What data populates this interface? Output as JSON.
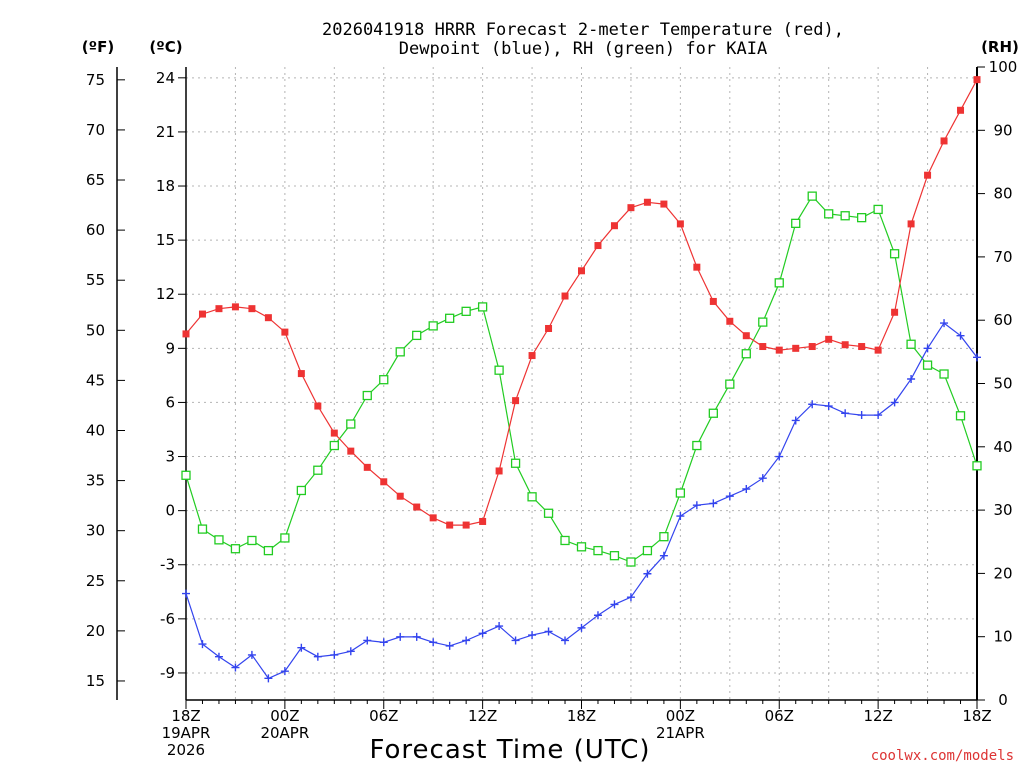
{
  "chart_data": {
    "type": "line",
    "title_line1": "2026041918 HRRR Forecast 2-meter Temperature (red),",
    "title_line2": "Dewpoint (blue), RH (green) for KAIA",
    "xlabel": "Forecast Time (UTC)",
    "credit": "coolwx.com/models",
    "unit_labels": {
      "fahrenheit": "(ºF)",
      "celsius": "(ºC)",
      "rh": "(RH)"
    },
    "x_ticks": [
      {
        "hour": 0,
        "lines": [
          "18Z",
          "19APR",
          "2026"
        ]
      },
      {
        "hour": 6,
        "lines": [
          "00Z",
          "20APR"
        ]
      },
      {
        "hour": 12,
        "lines": [
          "06Z"
        ]
      },
      {
        "hour": 18,
        "lines": [
          "12Z"
        ]
      },
      {
        "hour": 24,
        "lines": [
          "18Z"
        ]
      },
      {
        "hour": 30,
        "lines": [
          "00Z",
          "21APR"
        ]
      },
      {
        "hour": 36,
        "lines": [
          "06Z"
        ]
      },
      {
        "hour": 42,
        "lines": [
          "12Z"
        ]
      },
      {
        "hour": 48,
        "lines": [
          "18Z"
        ]
      }
    ],
    "xlim": [
      0,
      48
    ],
    "ylim_c": [
      -10.5,
      24.6
    ],
    "ylim_rh": [
      0,
      100
    ],
    "celsius_ticks": [
      "-9",
      "-6",
      "-3",
      "0",
      "3",
      "6",
      "9",
      "12",
      "15",
      "18",
      "21",
      "24"
    ],
    "fahrenheit_ticks": [
      "15",
      "20",
      "25",
      "30",
      "35",
      "40",
      "45",
      "50",
      "55",
      "60",
      "65",
      "70",
      "75"
    ],
    "rh_ticks": [
      "0",
      "10",
      "20",
      "30",
      "40",
      "50",
      "60",
      "70",
      "80",
      "90",
      "100"
    ],
    "series": [
      {
        "name": "Temperature",
        "color": "#ee3333",
        "unit": "C",
        "marker": "filled-square",
        "values": [
          9.8,
          10.9,
          11.2,
          11.3,
          11.2,
          10.7,
          9.9,
          7.6,
          5.8,
          4.3,
          3.3,
          2.4,
          1.6,
          0.8,
          0.2,
          -0.4,
          -0.8,
          -0.8,
          -0.6,
          2.2,
          6.1,
          8.6,
          10.1,
          11.9,
          13.3,
          14.7,
          15.8,
          16.8,
          17.1,
          17.0,
          15.9,
          13.5,
          11.6,
          10.5,
          9.7,
          9.1,
          8.9,
          9.0,
          9.1,
          9.5,
          9.2,
          9.1,
          8.9,
          11.0,
          15.9,
          18.6,
          20.5,
          22.2,
          23.9
        ]
      },
      {
        "name": "Dewpoint",
        "color": "#3344ee",
        "unit": "C",
        "marker": "plus",
        "values": [
          -4.6,
          -7.4,
          -8.1,
          -8.7,
          -8.0,
          -9.3,
          -8.9,
          -7.6,
          -8.1,
          -8.0,
          -7.8,
          -7.2,
          -7.3,
          -7.0,
          -7.0,
          -7.3,
          -7.5,
          -7.2,
          -6.8,
          -6.4,
          -7.2,
          -6.9,
          -6.7,
          -7.2,
          -6.5,
          -5.8,
          -5.2,
          -4.8,
          -3.5,
          -2.5,
          -0.3,
          0.3,
          0.4,
          0.8,
          1.2,
          1.8,
          3.0,
          5.0,
          5.9,
          5.8,
          5.4,
          5.3,
          5.3,
          6.0,
          7.3,
          9.0,
          10.4,
          9.7,
          8.5
        ]
      },
      {
        "name": "RH",
        "color": "#22cc22",
        "unit": "%",
        "marker": "open-square",
        "values": [
          35.5,
          27.0,
          25.3,
          23.9,
          25.2,
          23.6,
          25.6,
          33.1,
          36.3,
          40.2,
          43.6,
          48.1,
          50.6,
          55.0,
          57.6,
          59.1,
          60.3,
          61.4,
          62.1,
          52.1,
          37.4,
          32.1,
          29.5,
          25.2,
          24.2,
          23.6,
          22.8,
          21.8,
          23.6,
          25.8,
          32.7,
          40.2,
          45.3,
          49.9,
          54.7,
          59.7,
          65.9,
          75.3,
          79.6,
          76.8,
          76.5,
          76.2,
          77.5,
          70.5,
          56.2,
          52.9,
          51.5,
          44.9,
          37.0
        ]
      }
    ]
  }
}
